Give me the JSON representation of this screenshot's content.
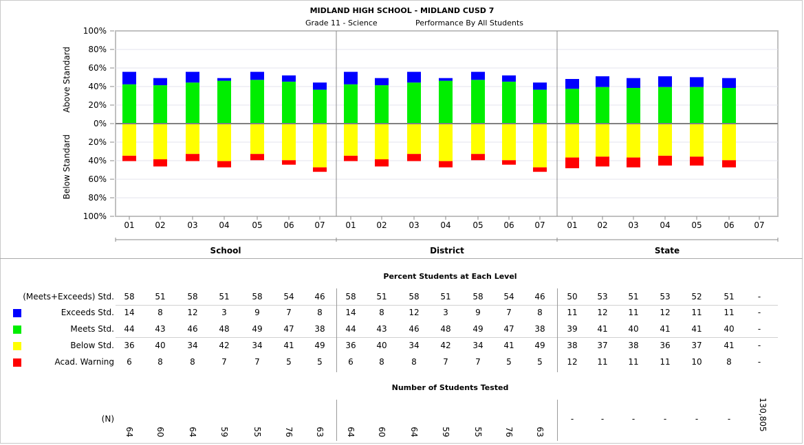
{
  "header": {
    "title": "MIDLAND HIGH SCHOOL - MIDLAND CUSD 7",
    "subtitle_left": "Grade 11 - Science",
    "subtitle_right": "Performance By All Students"
  },
  "chart_data": {
    "type": "bar",
    "stacked": "diverging",
    "y_tick_labels": [
      "100%",
      "80%",
      "60%",
      "40%",
      "20%",
      "0%",
      "20%",
      "40%",
      "60%",
      "80%",
      "100%"
    ],
    "ylabel_top": "Above Standard",
    "ylabel_bottom": "Below Standard",
    "ylim": [
      -100,
      100
    ],
    "groups": [
      {
        "name": "School",
        "categories": [
          "01",
          "02",
          "03",
          "04",
          "05",
          "06",
          "07"
        ]
      },
      {
        "name": "District",
        "categories": [
          "01",
          "02",
          "03",
          "04",
          "05",
          "06",
          "07"
        ]
      },
      {
        "name": "State",
        "categories": [
          "01",
          "02",
          "03",
          "04",
          "05",
          "06",
          "07"
        ]
      }
    ],
    "series": [
      {
        "name": "Exceeds Std.",
        "color": "#0000ff",
        "values": [
          14,
          8,
          12,
          3,
          9,
          7,
          8,
          14,
          8,
          12,
          3,
          9,
          7,
          8,
          11,
          12,
          11,
          12,
          11,
          11,
          null
        ]
      },
      {
        "name": "Meets Std.",
        "color": "#00ee00",
        "values": [
          44,
          43,
          46,
          48,
          49,
          47,
          38,
          44,
          43,
          46,
          48,
          49,
          47,
          38,
          39,
          41,
          40,
          41,
          41,
          40,
          null
        ]
      },
      {
        "name": "Below Std.",
        "color": "#ffff00",
        "values": [
          36,
          40,
          34,
          42,
          34,
          41,
          49,
          36,
          40,
          34,
          42,
          34,
          41,
          49,
          38,
          37,
          38,
          36,
          37,
          41,
          null
        ]
      },
      {
        "name": "Acad. Warning",
        "color": "#ff0000",
        "values": [
          6,
          8,
          8,
          7,
          7,
          5,
          5,
          6,
          8,
          8,
          7,
          7,
          5,
          5,
          12,
          11,
          11,
          11,
          10,
          8,
          null
        ]
      }
    ],
    "grid": true
  },
  "table": {
    "title": "Percent Students at Each Level",
    "rows": [
      {
        "label": "(Meets+Exceeds) Std.",
        "swatch": "",
        "values": [
          "58",
          "51",
          "58",
          "51",
          "58",
          "54",
          "46",
          "58",
          "51",
          "58",
          "51",
          "58",
          "54",
          "46",
          "50",
          "53",
          "51",
          "53",
          "52",
          "51",
          "-"
        ]
      },
      {
        "label": "Exceeds Std.",
        "swatch": "#0000ff",
        "values": [
          "14",
          "8",
          "12",
          "3",
          "9",
          "7",
          "8",
          "14",
          "8",
          "12",
          "3",
          "9",
          "7",
          "8",
          "11",
          "12",
          "11",
          "12",
          "11",
          "11",
          "-"
        ]
      },
      {
        "label": "Meets Std.",
        "swatch": "#00ee00",
        "values": [
          "44",
          "43",
          "46",
          "48",
          "49",
          "47",
          "38",
          "44",
          "43",
          "46",
          "48",
          "49",
          "47",
          "38",
          "39",
          "41",
          "40",
          "41",
          "41",
          "40",
          "-"
        ]
      },
      {
        "label": "Below Std.",
        "swatch": "#ffff00",
        "values": [
          "36",
          "40",
          "34",
          "42",
          "34",
          "41",
          "49",
          "36",
          "40",
          "34",
          "42",
          "34",
          "41",
          "49",
          "38",
          "37",
          "38",
          "36",
          "37",
          "41",
          "-"
        ]
      },
      {
        "label": "Acad. Warning",
        "swatch": "#ff0000",
        "values": [
          "6",
          "8",
          "8",
          "7",
          "7",
          "5",
          "5",
          "6",
          "8",
          "8",
          "7",
          "7",
          "5",
          "5",
          "12",
          "11",
          "11",
          "11",
          "10",
          "8",
          "-"
        ]
      }
    ]
  },
  "tested": {
    "title": "Number of Students Tested",
    "label": "(N)",
    "values": [
      "64",
      "60",
      "64",
      "59",
      "55",
      "76",
      "63",
      "64",
      "60",
      "64",
      "59",
      "55",
      "76",
      "63",
      "-",
      "-",
      "-",
      "-",
      "-",
      "-",
      "130,805"
    ]
  }
}
